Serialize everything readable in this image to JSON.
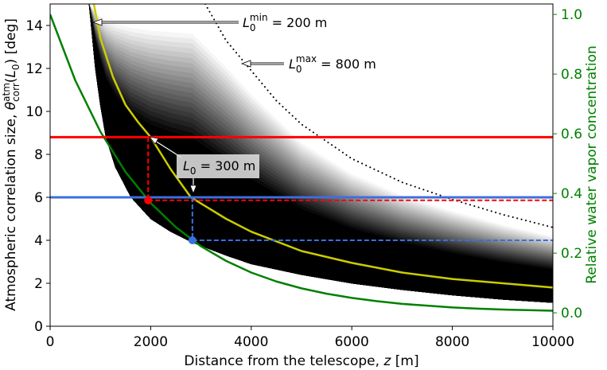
{
  "chart_data": {
    "type": "line",
    "xlabel": [
      "Distance from the telescope, ",
      "z",
      " [m]"
    ],
    "ylabel": [
      "Atmospheric correlation size, ",
      "θ",
      "atm",
      "corr",
      "(",
      "L",
      "0",
      ") [deg]"
    ],
    "y2label": "Relative water vapor concentration",
    "xlim": [
      0,
      10000
    ],
    "xticks": [
      0,
      2000,
      4000,
      6000,
      8000,
      10000
    ],
    "ylim": [
      0,
      15
    ],
    "yticks": [
      0,
      2,
      4,
      6,
      8,
      10,
      12,
      14
    ],
    "y2lim": [
      -0.045,
      1.035
    ],
    "y2ticks": [
      {
        "value": 0,
        "label": "0.0"
      },
      {
        "value": 0.2,
        "label": "0.2"
      },
      {
        "value": 0.4,
        "label": "0.4"
      },
      {
        "value": 0.6,
        "label": "0.6"
      },
      {
        "value": 0.8,
        "label": "0.8"
      },
      {
        "value": 1.0,
        "label": "1.0"
      }
    ],
    "y2color": "#008000",
    "series": [
      {
        "style": "band-min",
        "color": "#000000",
        "x": [
          775,
          900,
          1000,
          1110,
          1300,
          1610,
          2000,
          2400,
          2830,
          3500,
          4000,
          5000,
          6000,
          7000,
          8000,
          9000,
          10000
        ],
        "values": [
          15,
          12,
          10.3,
          8.8,
          7.4,
          6.0,
          5.0,
          4.4,
          3.9,
          3.3,
          2.9,
          2.4,
          2.0,
          1.7,
          1.45,
          1.25,
          1.1
        ]
      },
      {
        "style": "dotted",
        "color": "#000000",
        "x": [
          3085,
          3500,
          4000,
          4500,
          5000,
          6000,
          7000,
          8000,
          9000,
          10000
        ],
        "values": [
          15,
          13.3,
          11.9,
          10.5,
          9.4,
          7.8,
          6.7,
          5.9,
          5.2,
          4.6
        ]
      },
      {
        "style": "solid",
        "color": "#cccc00",
        "x": [
          870,
          1000,
          1250,
          1500,
          1750,
          2000,
          2400,
          2800,
          3500,
          4000,
          5000,
          6000,
          7000,
          8000,
          9000,
          10000
        ],
        "values": [
          15,
          13.4,
          11.6,
          10.3,
          9.5,
          8.8,
          7.3,
          6.0,
          5.0,
          4.4,
          3.5,
          2.95,
          2.5,
          2.2,
          2.0,
          1.8
        ]
      },
      {
        "style": "solid",
        "color": "#008000",
        "axis": "y2",
        "x": [
          0,
          500,
          1000,
          1500,
          2000,
          2500,
          3000,
          3500,
          4000,
          4500,
          5000,
          5500,
          6000,
          6500,
          7000,
          7500,
          8000,
          8500,
          9000,
          9500,
          10000
        ],
        "values": [
          1.0,
          0.779,
          0.607,
          0.472,
          0.368,
          0.287,
          0.223,
          0.174,
          0.135,
          0.105,
          0.082,
          0.064,
          0.05,
          0.039,
          0.03,
          0.024,
          0.018,
          0.014,
          0.011,
          0.009,
          0.007
        ]
      }
    ],
    "hlines": [
      {
        "value": 8.8,
        "color": "#ff0000"
      },
      {
        "value": 6.0,
        "color": "#3a6fe0"
      }
    ],
    "markers": [
      {
        "x": 1950,
        "y": 0.377,
        "axis": "y2",
        "color": "#ff0000"
      },
      {
        "x": 2830,
        "y": 0.243,
        "axis": "y2",
        "color": "#3a6fe0"
      }
    ],
    "annotations": [
      {
        "text": [
          "L",
          "0",
          "min",
          " = 200 m"
        ]
      },
      {
        "text": [
          "L",
          "0",
          "max",
          " = 800 m"
        ]
      },
      {
        "text": [
          "L",
          "0",
          " = 300 m"
        ]
      }
    ]
  }
}
